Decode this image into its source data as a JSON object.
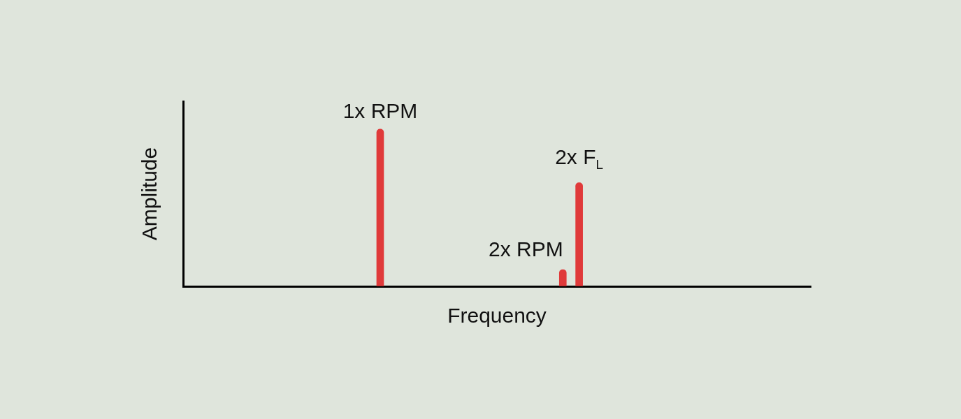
{
  "chart_data": {
    "type": "bar",
    "xlabel": "Frequency",
    "ylabel": "Amplitude",
    "x": [
      31.4,
      60.5,
      63.1
    ],
    "values": [
      85,
      9,
      56
    ],
    "color": "#e03a3a",
    "xlim": [
      0,
      100
    ],
    "ylim": [
      0,
      100
    ],
    "grid": false,
    "tick_labels": false,
    "annotations": [
      {
        "text": "1x RPM",
        "x": 31.4,
        "y": 94
      },
      {
        "text": "2x RPM",
        "x": 54.6,
        "y": 19.5
      },
      {
        "text": "2x F",
        "subscript": "L",
        "x": 63.1,
        "y": 69
      }
    ]
  }
}
